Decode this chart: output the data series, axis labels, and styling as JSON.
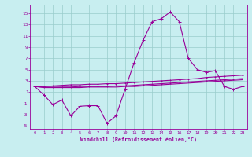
{
  "xlabel": "Windchill (Refroidissement éolien,°C)",
  "bg_color": "#c8eef0",
  "grid_color": "#99cccc",
  "line_color": "#990099",
  "x_data": [
    0,
    1,
    2,
    3,
    4,
    5,
    6,
    7,
    8,
    9,
    10,
    11,
    12,
    13,
    14,
    15,
    16,
    17,
    18,
    19,
    20,
    21,
    22,
    23
  ],
  "line_main": [
    2.0,
    0.5,
    -1.2,
    -0.4,
    -3.2,
    -1.5,
    -1.4,
    -1.4,
    -4.5,
    -3.2,
    1.5,
    6.2,
    10.2,
    13.5,
    14.0,
    15.2,
    13.5,
    7.0,
    5.0,
    4.5,
    4.8,
    2.0,
    1.5,
    2.0
  ],
  "line_upper": [
    2.0,
    2.0,
    2.1,
    2.2,
    2.3,
    2.3,
    2.4,
    2.4,
    2.5,
    2.5,
    2.6,
    2.7,
    2.8,
    2.9,
    3.0,
    3.1,
    3.2,
    3.3,
    3.4,
    3.6,
    3.7,
    3.8,
    3.9,
    4.0
  ],
  "line_mid": [
    2.0,
    1.9,
    1.9,
    1.9,
    1.9,
    2.0,
    2.0,
    2.0,
    2.0,
    2.1,
    2.1,
    2.2,
    2.3,
    2.4,
    2.5,
    2.6,
    2.7,
    2.8,
    2.9,
    3.0,
    3.1,
    3.2,
    3.3,
    3.4
  ],
  "line_lower": [
    2.0,
    1.8,
    1.8,
    1.8,
    1.8,
    1.8,
    1.9,
    1.9,
    1.9,
    1.9,
    2.0,
    2.0,
    2.1,
    2.2,
    2.3,
    2.4,
    2.5,
    2.6,
    2.7,
    2.8,
    2.9,
    3.0,
    3.1,
    3.2
  ],
  "ylim": [
    -5.5,
    16.5
  ],
  "yticks": [
    -5,
    -3,
    -1,
    1,
    3,
    5,
    7,
    9,
    11,
    13,
    15
  ],
  "xlim": [
    -0.5,
    23.5
  ],
  "xticks": [
    0,
    1,
    2,
    3,
    4,
    5,
    6,
    7,
    8,
    9,
    10,
    11,
    12,
    13,
    14,
    15,
    16,
    17,
    18,
    19,
    20,
    21,
    22,
    23
  ]
}
